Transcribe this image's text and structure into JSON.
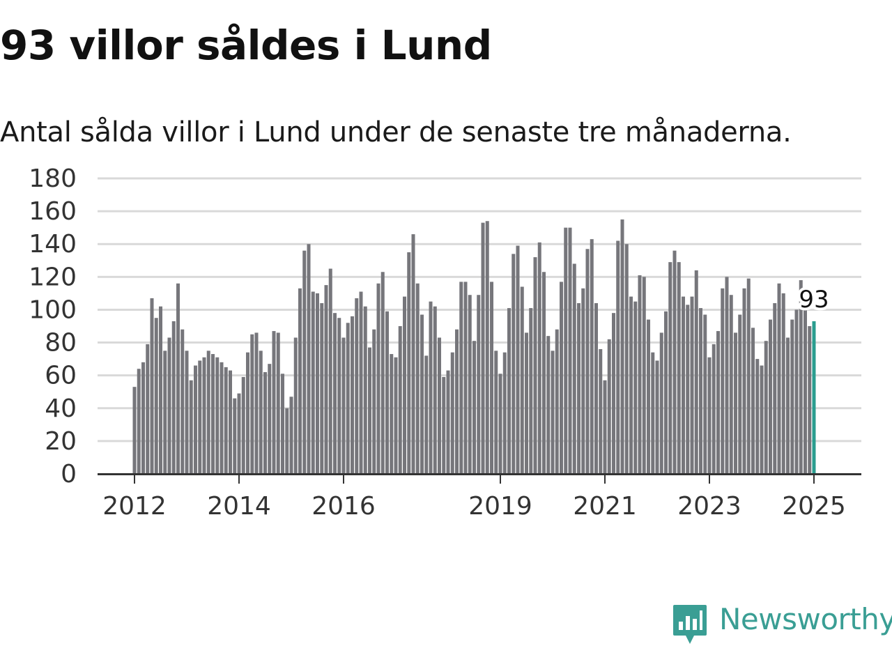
{
  "header": {
    "title": "93 villor såldes i Lund",
    "subtitle": "Antal sålda villor i Lund under de senaste tre månaderna."
  },
  "brand": {
    "name": "Newsworthy",
    "icon": "newsworthy-logo-icon",
    "color": "#3a9e94"
  },
  "colors": {
    "bar": "#76767b",
    "highlight": "#2a9d8f",
    "grid": "#d9d9d9",
    "axis": "#333333"
  },
  "chart_data": {
    "type": "bar",
    "title": "93 villor såldes i Lund",
    "subtitle": "Antal sålda villor i Lund under de senaste tre månaderna.",
    "xlabel": "",
    "ylabel": "",
    "ylim": [
      0,
      180
    ],
    "yticks": [
      0,
      20,
      40,
      60,
      80,
      100,
      120,
      140,
      160,
      180
    ],
    "xticks": [
      "2012",
      "2014",
      "2016",
      "2019",
      "2021",
      "2023",
      "2025"
    ],
    "grid": true,
    "start_period": "2012-01",
    "frequency": "monthly",
    "values": [
      53,
      64,
      68,
      79,
      107,
      95,
      102,
      75,
      83,
      93,
      116,
      88,
      75,
      57,
      66,
      69,
      71,
      75,
      73,
      71,
      68,
      65,
      63,
      46,
      49,
      59,
      74,
      85,
      86,
      75,
      62,
      67,
      87,
      86,
      61,
      40,
      47,
      83,
      113,
      136,
      140,
      111,
      110,
      104,
      115,
      125,
      98,
      95,
      83,
      92,
      96,
      107,
      111,
      102,
      77,
      88,
      116,
      123,
      99,
      73,
      71,
      90,
      108,
      135,
      146,
      116,
      97,
      72,
      105,
      102,
      83,
      59,
      63,
      74,
      88,
      117,
      117,
      109,
      81,
      109,
      153,
      154,
      117,
      75,
      61,
      74,
      101,
      134,
      139,
      114,
      86,
      101,
      132,
      141,
      123,
      84,
      75,
      88,
      117,
      150,
      150,
      128,
      104,
      113,
      137,
      143,
      104,
      76,
      57,
      82,
      98,
      142,
      155,
      140,
      108,
      105,
      121,
      120,
      94,
      74,
      69,
      86,
      99,
      129,
      136,
      129,
      108,
      103,
      108,
      124,
      101,
      97,
      71,
      79,
      87,
      113,
      120,
      109,
      86,
      97,
      113,
      119,
      89,
      70,
      66,
      81,
      94,
      104,
      116,
      110,
      83,
      94,
      100,
      118,
      105,
      90,
      93
    ],
    "highlight_last": true,
    "last_label": "93"
  }
}
